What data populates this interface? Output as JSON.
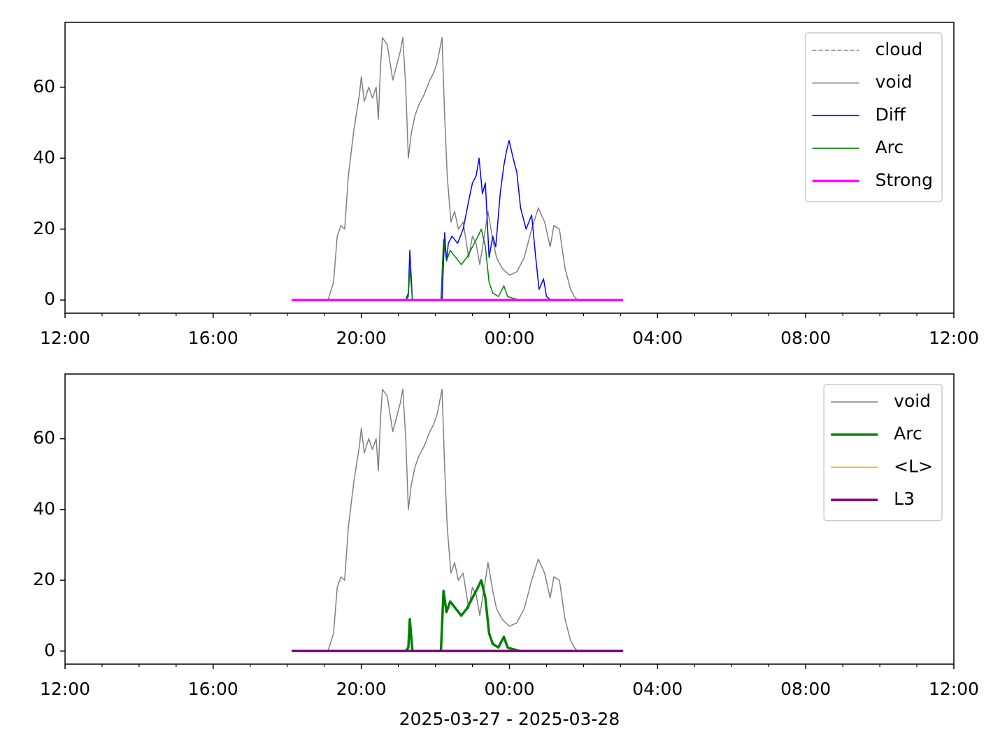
{
  "chart_data": [
    {
      "type": "line",
      "xlabel": null,
      "xlim": [
        0,
        24
      ],
      "ylim": [
        -3.7,
        78.3
      ],
      "xticks": [
        {
          "value": 0,
          "label": "12:00"
        },
        {
          "value": 4,
          "label": "16:00"
        },
        {
          "value": 8,
          "label": "20:00"
        },
        {
          "value": 12,
          "label": "00:00"
        },
        {
          "value": 16,
          "label": "04:00"
        },
        {
          "value": 20,
          "label": "08:00"
        },
        {
          "value": 24,
          "label": "12:00"
        }
      ],
      "xminorticks": [
        1,
        2,
        3,
        5,
        6,
        7,
        9,
        10,
        11,
        13,
        14,
        15,
        17,
        18,
        19,
        21,
        22,
        23
      ],
      "yticks": [
        0,
        20,
        40,
        60
      ],
      "legend": "upper right",
      "series": [
        {
          "name": "cloud",
          "color": "#808080",
          "dash": true,
          "linewidth": 1.5,
          "x": [],
          "values": []
        },
        {
          "name": "void",
          "color": "#808080",
          "linewidth": 1.5,
          "x": [
            6.12,
            7.1,
            7.25,
            7.35,
            7.45,
            7.55,
            7.65,
            7.8,
            7.95,
            8.0,
            8.08,
            8.2,
            8.3,
            8.4,
            8.46,
            8.52,
            8.57,
            8.7,
            8.85,
            8.95,
            9.05,
            9.12,
            9.2,
            9.27,
            9.35,
            9.45,
            9.55,
            9.7,
            9.85,
            9.95,
            10.05,
            10.18,
            10.25,
            10.32,
            10.42,
            10.52,
            10.62,
            10.75,
            10.9,
            11.0,
            11.1,
            11.2,
            11.35,
            11.42,
            11.55,
            11.65,
            11.8,
            12.0,
            12.2,
            12.4,
            12.6,
            12.78,
            12.95,
            13.1,
            13.2,
            13.35,
            13.5,
            13.65,
            13.75,
            13.84,
            15.07
          ],
          "values": [
            0,
            0,
            5,
            18,
            21,
            20,
            35,
            48,
            58,
            63,
            56,
            60,
            57,
            60,
            51,
            66,
            74,
            72,
            62,
            66,
            70,
            74,
            60,
            40,
            47,
            52,
            55,
            58,
            62,
            64,
            67,
            74,
            52,
            35,
            22,
            25,
            20,
            22,
            12,
            18,
            16,
            10,
            20,
            25,
            17,
            12,
            9,
            7,
            8,
            12,
            20,
            26,
            22,
            15,
            21,
            20,
            9,
            3,
            1,
            0,
            0
          ]
        },
        {
          "name": "Diff",
          "color": "#0000ff",
          "linewidth": 1.5,
          "x": [
            6.12,
            9.2,
            9.27,
            9.31,
            9.38,
            10.18,
            10.25,
            10.3,
            10.35,
            10.45,
            10.6,
            10.75,
            10.9,
            11.0,
            11.1,
            11.18,
            11.27,
            11.35,
            11.45,
            11.55,
            11.63,
            11.75,
            11.85,
            11.92,
            11.99,
            12.1,
            12.2,
            12.3,
            12.45,
            12.6,
            12.7,
            12.8,
            12.92,
            13.0,
            13.12,
            15.07
          ],
          "values": [
            0,
            0,
            2,
            14,
            0,
            0,
            19,
            11,
            16,
            18,
            16,
            20,
            28,
            33,
            35,
            40,
            30,
            33,
            12,
            18,
            15,
            30,
            38,
            42,
            45,
            40,
            36,
            26,
            20,
            24,
            13,
            3,
            6,
            1,
            0,
            0
          ]
        },
        {
          "name": "Arc",
          "color": "#008000",
          "linewidth": 1.5,
          "x": [
            6.12,
            9.2,
            9.27,
            9.31,
            9.38,
            10.15,
            10.22,
            10.3,
            10.4,
            10.55,
            10.7,
            10.85,
            11.0,
            11.15,
            11.24,
            11.35,
            11.45,
            11.55,
            11.7,
            11.85,
            11.95,
            12.1,
            12.3,
            15.07
          ],
          "values": [
            0,
            0,
            1,
            9,
            0,
            0,
            17,
            11,
            14,
            12,
            10,
            12,
            15,
            18,
            20,
            15,
            5,
            2,
            1,
            4,
            1,
            0.5,
            0,
            0
          ]
        },
        {
          "name": "Strong",
          "color": "#ff00ff",
          "linewidth": 3.5,
          "x": [
            6.12,
            15.07
          ],
          "values": [
            0,
            0
          ]
        }
      ]
    },
    {
      "type": "line",
      "xlabel": "2025-03-27 - 2025-03-28",
      "xlim": [
        0,
        24
      ],
      "ylim": [
        -3.7,
        78.3
      ],
      "xticks": [
        {
          "value": 0,
          "label": "12:00"
        },
        {
          "value": 4,
          "label": "16:00"
        },
        {
          "value": 8,
          "label": "20:00"
        },
        {
          "value": 12,
          "label": "00:00"
        },
        {
          "value": 16,
          "label": "04:00"
        },
        {
          "value": 20,
          "label": "08:00"
        },
        {
          "value": 24,
          "label": "12:00"
        }
      ],
      "xminorticks": [
        1,
        2,
        3,
        5,
        6,
        7,
        9,
        10,
        11,
        13,
        14,
        15,
        17,
        18,
        19,
        21,
        22,
        23
      ],
      "yticks": [
        0,
        20,
        40,
        60
      ],
      "legend": "upper right",
      "series": [
        {
          "name": "void",
          "color": "#808080",
          "linewidth": 1.5,
          "x": [
            6.12,
            7.1,
            7.25,
            7.35,
            7.45,
            7.55,
            7.65,
            7.8,
            7.95,
            8.0,
            8.08,
            8.2,
            8.3,
            8.4,
            8.46,
            8.52,
            8.57,
            8.7,
            8.85,
            8.95,
            9.05,
            9.12,
            9.2,
            9.27,
            9.35,
            9.45,
            9.55,
            9.7,
            9.85,
            9.95,
            10.05,
            10.18,
            10.25,
            10.32,
            10.42,
            10.52,
            10.62,
            10.75,
            10.9,
            11.0,
            11.1,
            11.2,
            11.35,
            11.42,
            11.55,
            11.65,
            11.8,
            12.0,
            12.2,
            12.4,
            12.6,
            12.78,
            12.95,
            13.1,
            13.2,
            13.35,
            13.5,
            13.65,
            13.75,
            13.84,
            15.07
          ],
          "values": [
            0,
            0,
            5,
            18,
            21,
            20,
            35,
            48,
            58,
            63,
            56,
            60,
            57,
            60,
            51,
            66,
            74,
            72,
            62,
            66,
            70,
            74,
            60,
            40,
            47,
            52,
            55,
            58,
            62,
            64,
            67,
            74,
            52,
            35,
            22,
            25,
            20,
            22,
            12,
            18,
            16,
            10,
            20,
            25,
            17,
            12,
            9,
            7,
            8,
            12,
            20,
            26,
            22,
            15,
            21,
            20,
            9,
            3,
            1,
            0,
            0
          ]
        },
        {
          "name": "Arc",
          "color": "#008000",
          "linewidth": 3.5,
          "x": [
            6.12,
            9.2,
            9.27,
            9.31,
            9.38,
            10.15,
            10.22,
            10.3,
            10.4,
            10.55,
            10.7,
            10.85,
            11.0,
            11.15,
            11.24,
            11.35,
            11.45,
            11.55,
            11.7,
            11.85,
            11.95,
            12.1,
            12.3,
            15.07
          ],
          "values": [
            0,
            0,
            1,
            9,
            0,
            0,
            17,
            11,
            14,
            12,
            10,
            12,
            15,
            18,
            20,
            15,
            5,
            2,
            1,
            4,
            1,
            0.5,
            0,
            0
          ]
        },
        {
          "name": "<L>",
          "color": "#ffa500",
          "linewidth": 1.5,
          "x": [
            6.12,
            15.07
          ],
          "values": [
            0,
            0
          ]
        },
        {
          "name": "L3",
          "color": "#800080",
          "linewidth": 3.5,
          "x": [
            6.12,
            15.07
          ],
          "values": [
            0,
            0
          ]
        }
      ]
    }
  ]
}
